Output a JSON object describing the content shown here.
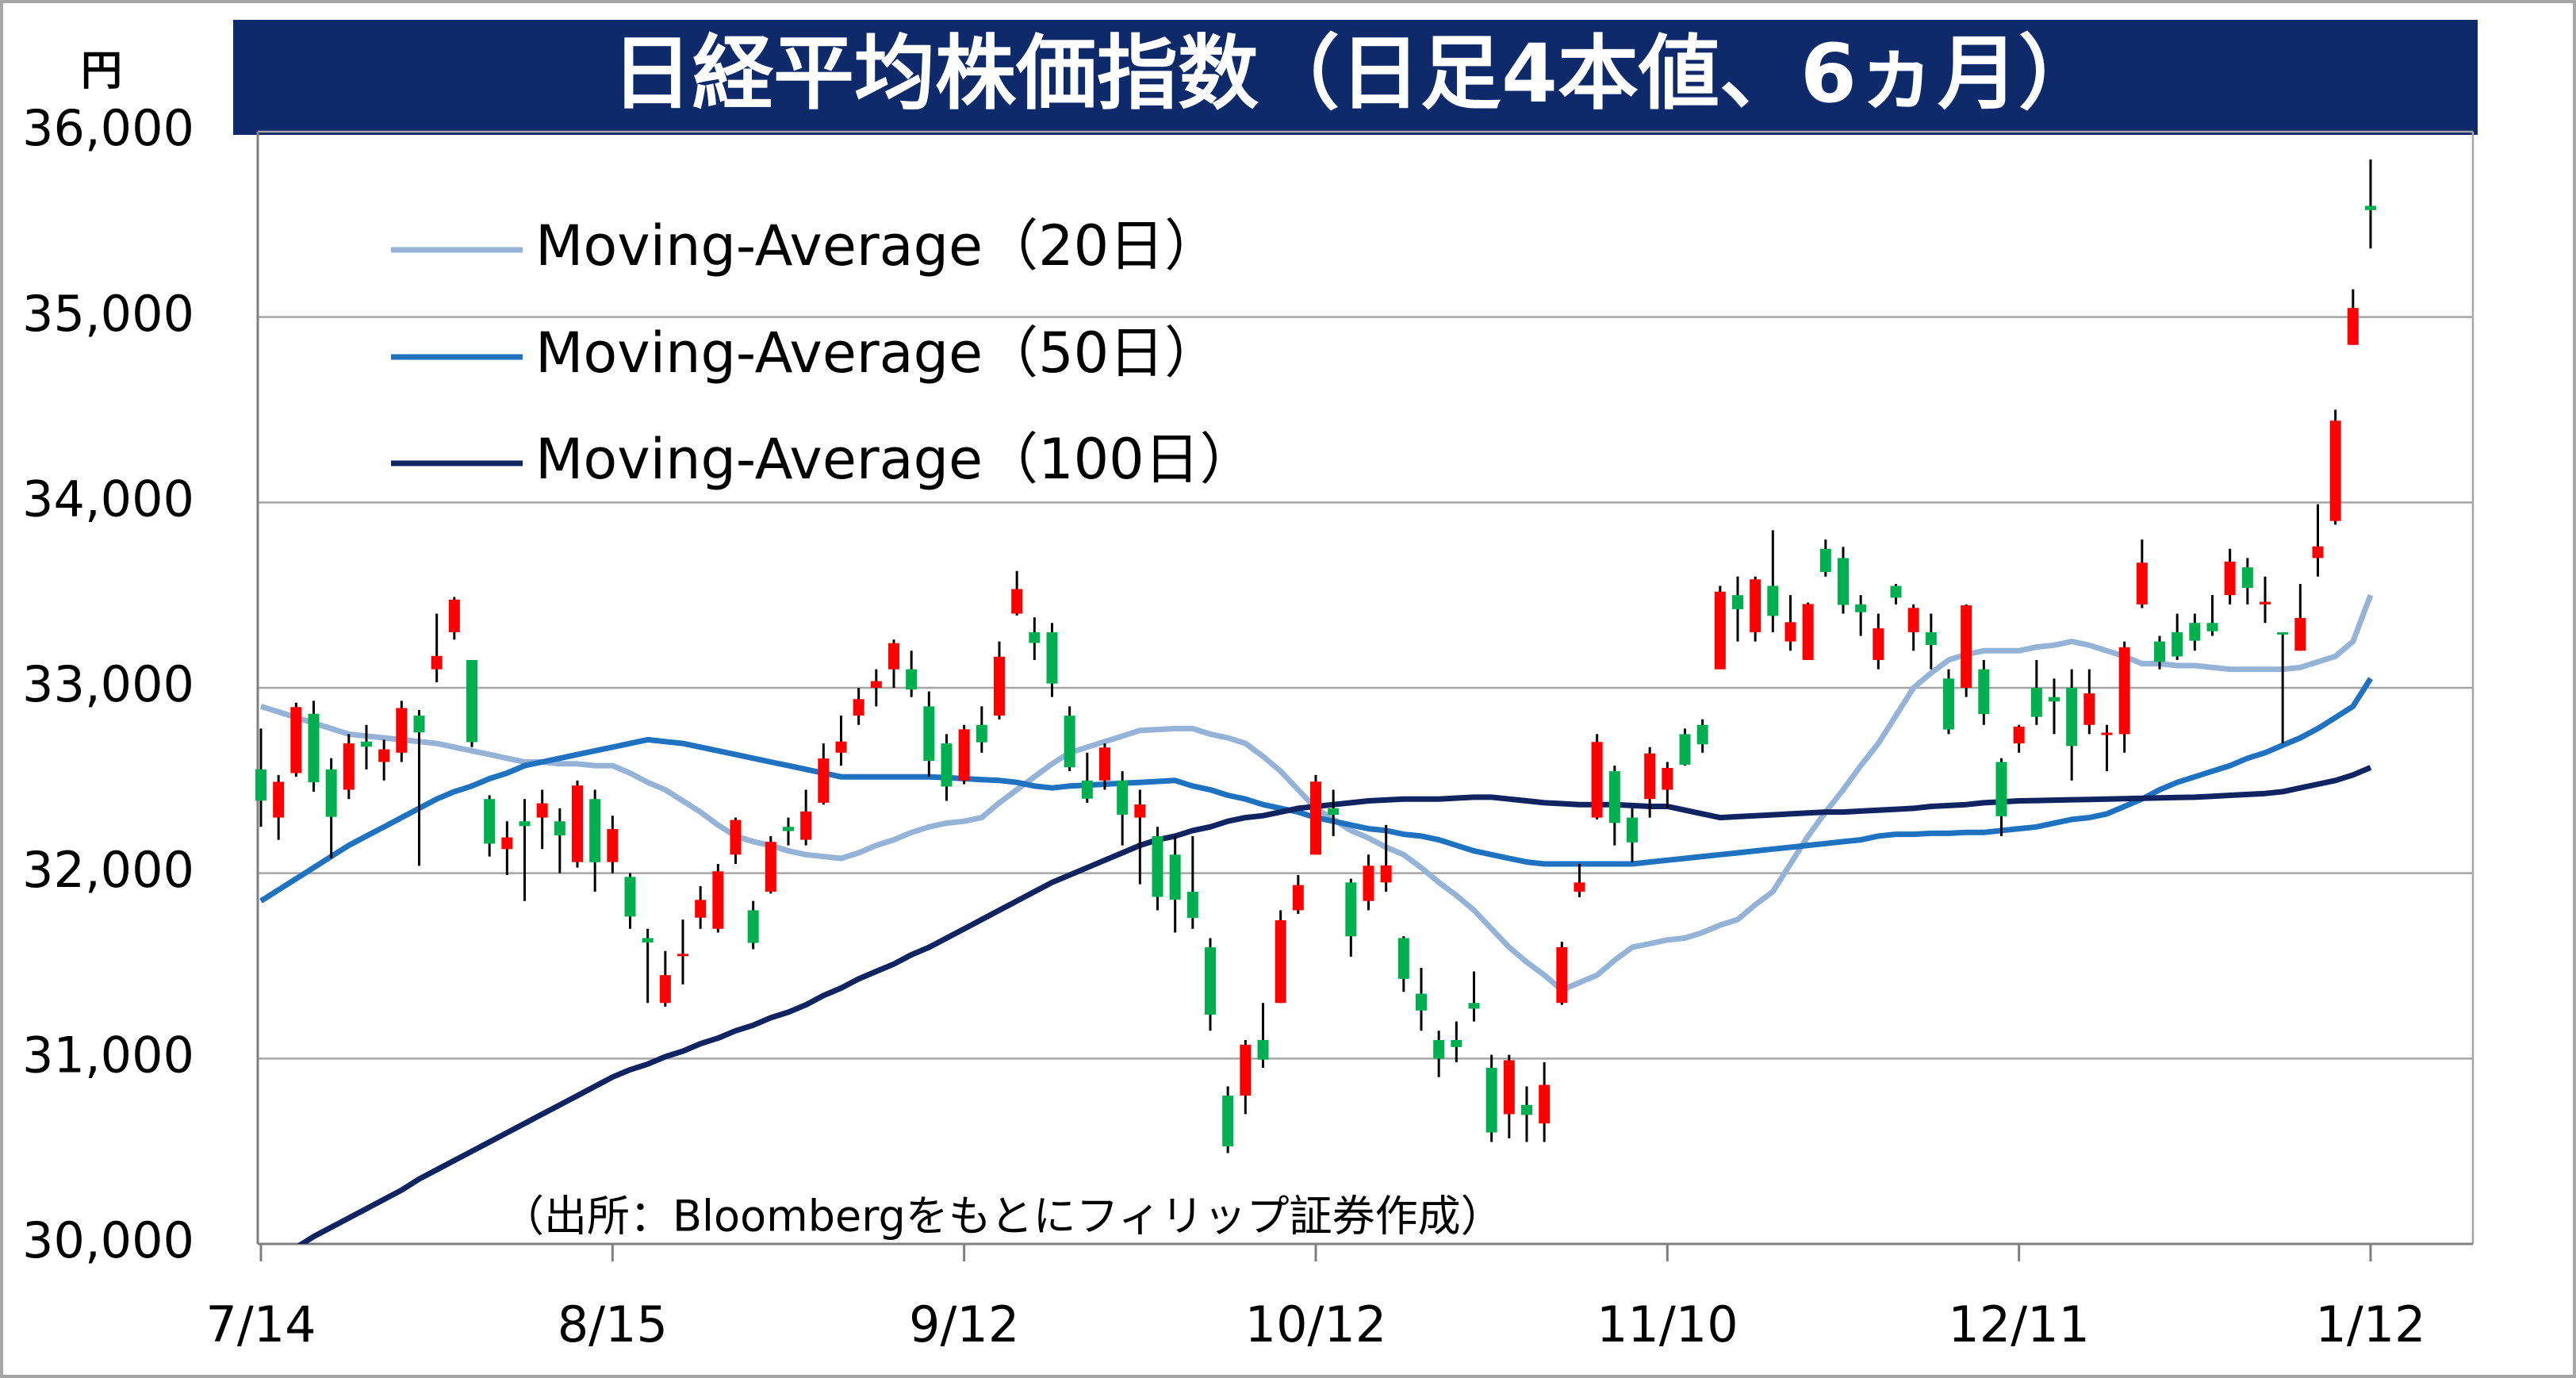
{
  "chart_data": {
    "type": "candlestick",
    "title": "日経平均株価指数（日足4本値、6ヵ月）",
    "y_unit": "円",
    "annotation": "（出所：Bloombergをもとにフィリップ証券作成）",
    "categories": [
      "7/14",
      null,
      null,
      null,
      null,
      null,
      null,
      null,
      null,
      null,
      null,
      null,
      null,
      null,
      null,
      null,
      null,
      null,
      null,
      null,
      "8/15",
      null,
      null,
      null,
      null,
      null,
      null,
      null,
      null,
      null,
      null,
      null,
      null,
      null,
      null,
      null,
      null,
      null,
      null,
      null,
      "9/12",
      null,
      null,
      null,
      null,
      null,
      null,
      null,
      null,
      null,
      null,
      null,
      null,
      null,
      null,
      null,
      null,
      null,
      null,
      null,
      "10/12",
      null,
      null,
      null,
      null,
      null,
      null,
      null,
      null,
      null,
      null,
      null,
      null,
      null,
      null,
      null,
      null,
      null,
      null,
      null,
      "11/10",
      null,
      null,
      null,
      null,
      null,
      null,
      null,
      null,
      null,
      null,
      null,
      null,
      null,
      null,
      null,
      null,
      null,
      null,
      null,
      "12/11",
      null,
      null,
      null,
      null,
      null,
      null,
      null,
      null,
      null,
      null,
      null,
      null,
      null,
      null,
      null,
      null,
      null,
      null,
      null,
      "1/12"
    ],
    "up_color": "#ff0000",
    "down_color": "#00b050",
    "open": [
      32560,
      32300,
      32540,
      32860,
      32560,
      32450,
      32710,
      32600,
      32650,
      32850,
      33100,
      33300,
      33150,
      32400,
      32130,
      32280,
      32300,
      32280,
      32060,
      32400,
      32060,
      31980,
      31650,
      31300,
      31560,
      31760,
      31700,
      32100,
      31800,
      31900,
      32250,
      32180,
      32380,
      32650,
      32850,
      33000,
      33100,
      33100,
      32900,
      32700,
      32500,
      32800,
      32850,
      33400,
      33300,
      33300,
      32850,
      32500,
      32500,
      32500,
      32300,
      32200,
      32100,
      31900,
      31600,
      30800,
      30800,
      31100,
      31300,
      31800,
      32100,
      32350,
      31950,
      31850,
      31950,
      31650,
      31350,
      31100,
      31100,
      31300,
      30950,
      30700,
      30750,
      30650,
      31300,
      31900,
      32300,
      32550,
      32300,
      32400,
      32450,
      32750,
      32800,
      33100,
      33500,
      33300,
      33550,
      33250,
      33150,
      33750,
      33700,
      33450,
      33150,
      33550,
      33300,
      33300,
      33050,
      33000,
      33100,
      32600,
      32700,
      33000,
      32950,
      33000,
      32800,
      32750,
      32750,
      33450,
      33250,
      33300,
      33350,
      33350,
      33500,
      33650,
      33450,
      33300,
      33200,
      33700,
      33900,
      34850,
      35600
    ],
    "high": [
      32780,
      32530,
      32920,
      32930,
      32620,
      32750,
      32800,
      32720,
      32930,
      32880,
      33400,
      33490,
      33150,
      32420,
      32280,
      32400,
      32450,
      32350,
      32500,
      32450,
      32310,
      32000,
      31700,
      31580,
      31750,
      31930,
      32050,
      32300,
      31850,
      32200,
      32300,
      32450,
      32700,
      32850,
      33000,
      33100,
      33260,
      33200,
      32980,
      32750,
      32800,
      32900,
      33250,
      33630,
      33380,
      33350,
      32900,
      32650,
      32700,
      32550,
      32450,
      32250,
      32200,
      32200,
      31650,
      30850,
      31100,
      31300,
      31800,
      31990,
      32530,
      32450,
      31970,
      32100,
      32260,
      31660,
      31490,
      31150,
      31200,
      31470,
      31020,
      31020,
      30850,
      30980,
      31630,
      32050,
      32750,
      32580,
      32350,
      32680,
      32600,
      32780,
      32830,
      33550,
      33600,
      33600,
      33850,
      33500,
      33460,
      33800,
      33760,
      33500,
      33400,
      33560,
      33450,
      33400,
      33100,
      33450,
      33150,
      32620,
      32800,
      33150,
      33050,
      33100,
      33100,
      32800,
      33250,
      33800,
      33280,
      33400,
      33400,
      33500,
      33750,
      33700,
      33600,
      33300,
      33560,
      33990,
      34500,
      35150,
      35850
    ],
    "low": [
      32250,
      32180,
      32520,
      32440,
      32080,
      32400,
      32560,
      32500,
      32600,
      32040,
      33030,
      33260,
      32680,
      32090,
      31990,
      31850,
      32130,
      32000,
      32030,
      31900,
      32000,
      31700,
      31300,
      31280,
      31400,
      31700,
      31680,
      32050,
      31590,
      31890,
      32150,
      32150,
      32370,
      32580,
      32800,
      32900,
      33000,
      32950,
      32520,
      32390,
      32480,
      32650,
      32830,
      33390,
      33150,
      32950,
      32550,
      32380,
      32450,
      32150,
      31940,
      31800,
      31680,
      31700,
      31150,
      30490,
      30700,
      30950,
      31300,
      31780,
      32100,
      32200,
      31550,
      31800,
      31900,
      31360,
      31150,
      30900,
      30980,
      31200,
      30550,
      30570,
      30550,
      30550,
      31290,
      31870,
      32290,
      32150,
      32060,
      32300,
      32350,
      32580,
      32650,
      33100,
      33250,
      33250,
      33300,
      33200,
      33150,
      33600,
      33400,
      33280,
      33100,
      33450,
      33200,
      33100,
      32750,
      32950,
      32800,
      32200,
      32650,
      32800,
      32750,
      32500,
      32750,
      32550,
      32650,
      33430,
      33100,
      33150,
      33200,
      33280,
      33450,
      33450,
      33350,
      32700,
      33200,
      33600,
      33880,
      34850,
      35370
    ],
    "close": [
      32391,
      32493,
      32896,
      32490,
      32304,
      32700,
      32682,
      32668,
      32891,
      32759,
      33172,
      33476,
      32707,
      32159,
      32193,
      32254,
      32377,
      32204,
      32473,
      32059,
      32238,
      31766,
      31626,
      31450,
      31565,
      31856,
      32010,
      32287,
      31624,
      32169,
      32227,
      32333,
      32619,
      32710,
      32939,
      33036,
      33241,
      32991,
      32606,
      32467,
      32776,
      32706,
      33168,
      33533,
      33242,
      33023,
      32571,
      32402,
      32678,
      32315,
      32371,
      31872,
      31857,
      31759,
      31237,
      30526,
      31075,
      30994,
      31746,
      31936,
      32494,
      32315,
      31659,
      32040,
      32042,
      31430,
      31259,
      30999,
      31062,
      31269,
      30601,
      30991,
      30696,
      30858,
      31601,
      31950,
      32708,
      32271,
      32166,
      32646,
      32568,
      32585,
      32695,
      33519,
      33424,
      33585,
      33388,
      33354,
      33452,
      33625,
      33447,
      33408,
      33321,
      33486,
      33431,
      33231,
      32775,
      33445,
      32858,
      32307,
      32791,
      32843,
      32926,
      32686,
      32970,
      32758,
      33219,
      33675,
      33140,
      33169,
      33254,
      33305,
      33681,
      33539,
      33464,
      33288,
      33377,
      33763,
      34441,
      35049,
      35577
    ],
    "series": [
      {
        "name": "Moving-Average（20日）",
        "color": "#95b3d7",
        "values": [
          32900,
          32870,
          32840,
          32810,
          32780,
          32750,
          32740,
          32730,
          32720,
          32710,
          32700,
          32680,
          32660,
          32640,
          32620,
          32600,
          32600,
          32590,
          32590,
          32580,
          32580,
          32540,
          32490,
          32450,
          32390,
          32330,
          32260,
          32200,
          32170,
          32150,
          32120,
          32100,
          32090,
          32080,
          32110,
          32150,
          32180,
          32220,
          32250,
          32270,
          32280,
          32300,
          32380,
          32450,
          32520,
          32590,
          32650,
          32680,
          32710,
          32740,
          32770,
          32775,
          32780,
          32780,
          32750,
          32730,
          32700,
          32630,
          32550,
          32450,
          32350,
          32290,
          32230,
          32190,
          32140,
          32100,
          32030,
          31950,
          31880,
          31800,
          31700,
          31600,
          31520,
          31450,
          31370,
          31410,
          31450,
          31530,
          31600,
          31620,
          31640,
          31650,
          31680,
          31720,
          31750,
          31830,
          31900,
          32050,
          32200,
          32330,
          32450,
          32580,
          32700,
          32850,
          33000,
          33080,
          33150,
          33180,
          33200,
          33200,
          33200,
          33220,
          33230,
          33250,
          33230,
          33200,
          33170,
          33130,
          33130,
          33120,
          33120,
          33110,
          33100,
          33100,
          33100,
          33100,
          33110,
          33140,
          33170,
          33250,
          33500
        ]
      },
      {
        "name": "Moving-Average（50日）",
        "color": "#1f72c0",
        "values": [
          31850,
          31910,
          31970,
          32030,
          32090,
          32150,
          32200,
          32250,
          32300,
          32350,
          32400,
          32440,
          32470,
          32510,
          32540,
          32580,
          32600,
          32620,
          32640,
          32660,
          32680,
          32700,
          32720,
          32710,
          32700,
          32680,
          32660,
          32640,
          32620,
          32600,
          32580,
          32560,
          32540,
          32520,
          32520,
          32520,
          32520,
          32520,
          32520,
          32515,
          32510,
          32505,
          32500,
          32490,
          32470,
          32460,
          32470,
          32475,
          32480,
          32485,
          32490,
          32495,
          32500,
          32470,
          32450,
          32420,
          32400,
          32370,
          32350,
          32330,
          32300,
          32280,
          32260,
          32240,
          32230,
          32210,
          32200,
          32180,
          32150,
          32120,
          32100,
          32080,
          32060,
          32050,
          32050,
          32050,
          32050,
          32050,
          32050,
          32060,
          32070,
          32080,
          32090,
          32100,
          32110,
          32120,
          32130,
          32140,
          32150,
          32160,
          32170,
          32180,
          32200,
          32210,
          32210,
          32215,
          32215,
          32220,
          32220,
          32230,
          32240,
          32250,
          32270,
          32290,
          32300,
          32320,
          32360,
          32400,
          32450,
          32490,
          32520,
          32550,
          32580,
          32620,
          32650,
          32690,
          32730,
          32780,
          32840,
          32900,
          33050
        ]
      },
      {
        "name": "Moving-Average（100日）",
        "color": "#0f2460",
        "values": [
          29880,
          29930,
          29980,
          30040,
          30090,
          30140,
          30190,
          30240,
          30290,
          30350,
          30400,
          30450,
          30500,
          30550,
          30600,
          30650,
          30700,
          30750,
          30800,
          30850,
          30900,
          30940,
          30970,
          31010,
          31040,
          31080,
          31110,
          31150,
          31180,
          31220,
          31250,
          31290,
          31340,
          31380,
          31430,
          31470,
          31510,
          31560,
          31600,
          31650,
          31700,
          31750,
          31800,
          31850,
          31900,
          31950,
          31990,
          32030,
          32070,
          32110,
          32150,
          32180,
          32200,
          32230,
          32250,
          32280,
          32300,
          32310,
          32330,
          32350,
          32360,
          32370,
          32380,
          32390,
          32395,
          32400,
          32400,
          32400,
          32405,
          32410,
          32410,
          32400,
          32390,
          32380,
          32375,
          32370,
          32370,
          32370,
          32365,
          32360,
          32360,
          32340,
          32320,
          32300,
          32305,
          32310,
          32315,
          32320,
          32325,
          32330,
          32330,
          32335,
          32340,
          32345,
          32350,
          32360,
          32365,
          32370,
          32380,
          32385,
          32390,
          32392,
          32394,
          32396,
          32398,
          32400,
          32402,
          32404,
          32406,
          32408,
          32410,
          32415,
          32420,
          32425,
          32430,
          32440,
          32460,
          32480,
          32500,
          32530,
          32570
        ]
      }
    ],
    "legend": "upper left",
    "grid": true,
    "ylim": [
      30000,
      36000
    ],
    "yticks": [
      {
        "value": 30000,
        "label": "30,000"
      },
      {
        "value": 31000,
        "label": "31,000"
      },
      {
        "value": 32000,
        "label": "32,000"
      },
      {
        "value": 33000,
        "label": "33,000"
      },
      {
        "value": 34000,
        "label": "34,000"
      },
      {
        "value": 35000,
        "label": "35,000"
      },
      {
        "value": 36000,
        "label": "36,000"
      }
    ]
  }
}
